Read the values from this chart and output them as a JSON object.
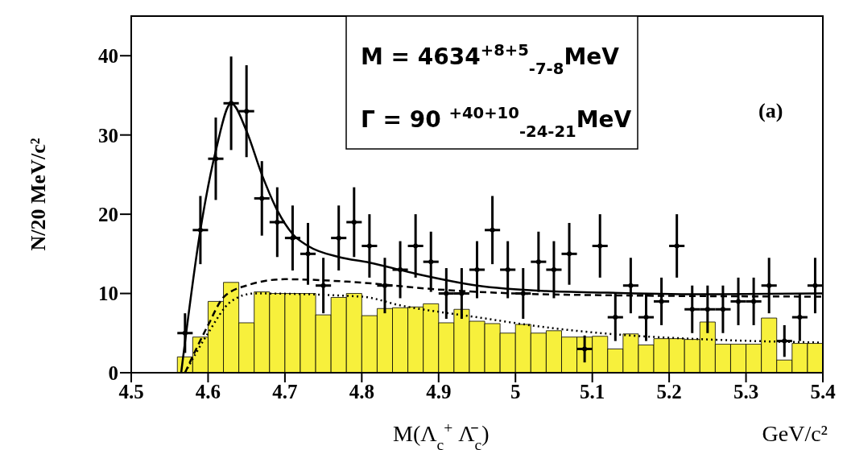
{
  "chart_data": {
    "type": "scatter",
    "xlabel": "M(Λ$_{c}$$^{+}$ Λ̄$_{c}$)",
    "ylabel": "N/20 MeV/c²",
    "annotations": [
      "M = 4634$^{+8+5}$$_{-7-8}$MeV",
      "Γ = 90 $^{+40+10}$$_{-24-21}$MeV",
      "(a)",
      "GeV/c²"
    ],
    "xlim": [
      4.5,
      5.4
    ],
    "xticks": [
      4.5,
      4.6,
      4.7,
      4.8,
      4.9,
      5,
      5.1,
      5.2,
      5.3,
      5.4
    ],
    "ylim": [
      0,
      45
    ],
    "yticks": [
      0,
      10,
      20,
      30,
      40
    ],
    "grid": false,
    "legend": false,
    "series": [
      {
        "type": "histogram",
        "color": "#f7f03c",
        "bins": [
          4.56,
          4.58,
          4.6,
          4.62,
          4.64,
          4.66,
          4.68,
          4.7,
          4.72,
          4.74,
          4.76,
          4.78,
          4.8,
          4.82,
          4.84,
          4.86,
          4.88,
          4.9,
          4.92,
          4.94,
          4.96,
          4.98,
          5.0,
          5.02,
          5.04,
          5.06,
          5.08,
          5.1,
          5.12,
          5.14,
          5.16,
          5.18,
          5.2,
          5.22,
          5.24,
          5.26,
          5.28,
          5.3,
          5.32,
          5.34,
          5.36,
          5.38,
          5.4
        ],
        "values": [
          2,
          4.5,
          9,
          11.4,
          6.3,
          10.2,
          10,
          10,
          10,
          7.3,
          9.5,
          10,
          7.2,
          8.1,
          8.2,
          8.3,
          8.7,
          6.3,
          8,
          6.5,
          6.2,
          5,
          6.1,
          5,
          5.3,
          4.5,
          4.5,
          4.6,
          3,
          4.9,
          3.5,
          4.3,
          4.3,
          4.2,
          6.4,
          3.6,
          3.6,
          3.6,
          6.9,
          1.6,
          3.7,
          3.7
        ]
      },
      {
        "type": "line",
        "color": "#000000",
        "line_style": "dotted",
        "x": [
          4.57,
          4.6,
          4.63,
          4.66,
          4.8,
          4.85,
          4.95,
          5.05,
          5.15,
          5.25,
          5.4
        ],
        "values": [
          0,
          5,
          9,
          10,
          9.6,
          8.5,
          7,
          5.6,
          4.7,
          4.2,
          3.8
        ]
      },
      {
        "type": "line",
        "color": "#000000",
        "line_style": "dashed",
        "x": [
          4.57,
          4.6,
          4.62,
          4.65,
          4.7,
          4.78,
          4.9,
          5.0,
          5.1,
          5.4
        ],
        "values": [
          0,
          6,
          9.5,
          11,
          11.8,
          11.5,
          10.5,
          10,
          9.8,
          9.6
        ]
      },
      {
        "type": "line",
        "color": "#000000",
        "line_style": "solid",
        "x": [
          4.565,
          4.59,
          4.61,
          4.63,
          4.65,
          4.67,
          4.69,
          4.71,
          4.73,
          4.77,
          4.81,
          4.87,
          4.95,
          5.04,
          5.12,
          5.25,
          5.4
        ],
        "values": [
          0,
          18,
          28,
          34,
          30.5,
          25,
          20.5,
          17.5,
          16,
          14.6,
          13.9,
          12.5,
          11,
          10.3,
          10.1,
          9.9,
          10
        ]
      },
      {
        "color": "#000000",
        "marker": "circle",
        "x": [
          4.57,
          4.59,
          4.61,
          4.63,
          4.65,
          4.67,
          4.69,
          4.71,
          4.73,
          4.75,
          4.77,
          4.79,
          4.81,
          4.83,
          4.85,
          4.87,
          4.89,
          4.91,
          4.93,
          4.95,
          4.97,
          4.99,
          5.01,
          5.03,
          5.05,
          5.07,
          5.09,
          5.11,
          5.13,
          5.15,
          5.17,
          5.19,
          5.21,
          5.23,
          5.25,
          5.27,
          5.29,
          5.31,
          5.33,
          5.35,
          5.37,
          5.39
        ],
        "values": [
          5,
          18,
          27,
          34,
          33,
          22,
          19,
          17,
          15,
          11,
          17,
          19,
          16,
          11,
          13,
          16,
          14,
          10,
          10,
          13,
          18,
          13,
          10,
          14,
          13,
          15,
          3,
          16,
          7,
          11,
          7,
          9,
          16,
          8,
          8,
          8,
          9,
          9,
          11,
          4,
          7,
          11
        ],
        "errors": [
          2.5,
          4.3,
          5.2,
          5.9,
          5.8,
          4.7,
          4.4,
          4.1,
          3.9,
          3.5,
          4.1,
          4.4,
          4,
          3.5,
          3.6,
          4,
          3.8,
          3.2,
          3.2,
          3.6,
          4.3,
          3.6,
          3.2,
          3.8,
          3.6,
          3.9,
          1.7,
          4,
          3,
          3.5,
          3,
          3,
          4,
          3,
          3,
          3,
          3,
          3,
          3.5,
          2,
          3,
          3.5
        ],
        "xerrors": [
          0.01,
          0.01,
          0.01,
          0.01,
          0.01,
          0.01,
          0.01,
          0.01,
          0.01,
          0.01,
          0.01,
          0.01,
          0.01,
          0.01,
          0.01,
          0.01,
          0.01,
          0.01,
          0.01,
          0.01,
          0.01,
          0.01,
          0.01,
          0.01,
          0.01,
          0.01,
          0.01,
          0.01,
          0.01,
          0.01,
          0.01,
          0.01,
          0.01,
          0.01,
          0.01,
          0.01,
          0.01,
          0.01,
          0.01,
          0.01,
          0.01,
          0.01
        ]
      }
    ]
  }
}
